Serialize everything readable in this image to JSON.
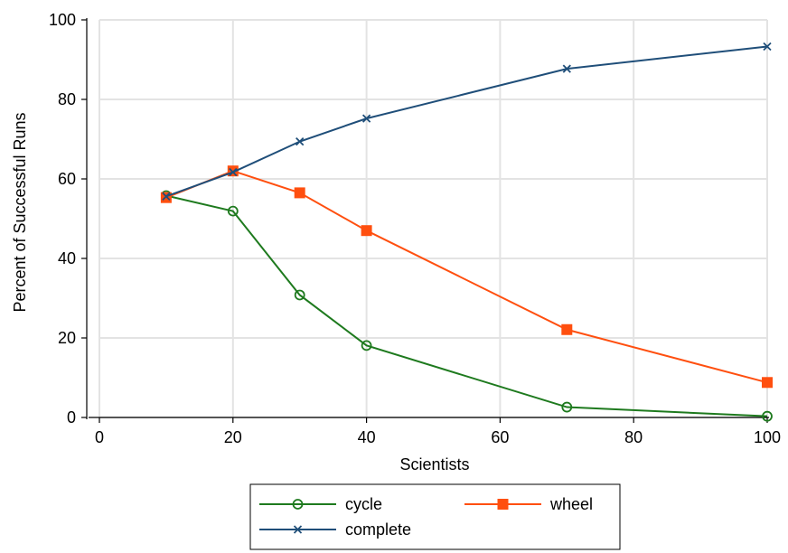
{
  "chart_data": {
    "type": "line",
    "xlabel": "Scientists",
    "ylabel": "Percent of Successful Runs",
    "xlim": [
      0,
      100
    ],
    "ylim": [
      0,
      100
    ],
    "xticks": [
      "0",
      "20",
      "40",
      "60",
      "80",
      "100"
    ],
    "yticks": [
      "0",
      "20",
      "40",
      "60",
      "80",
      "100"
    ],
    "grid": true,
    "legend_position": "bottom",
    "series": [
      {
        "name": "cycle",
        "color": "#1e7a1e",
        "marker": "circle",
        "x": [
          10,
          20,
          30,
          40,
          70,
          100
        ],
        "y": [
          55.8,
          51.9,
          30.8,
          18.1,
          2.6,
          0.3
        ]
      },
      {
        "name": "wheel",
        "color": "#ff4f0f",
        "marker": "square",
        "x": [
          10,
          20,
          30,
          40,
          70,
          100
        ],
        "y": [
          55.3,
          62.0,
          56.5,
          47.0,
          22.1,
          8.8
        ]
      },
      {
        "name": "complete",
        "color": "#1f4e79",
        "marker": "x",
        "x": [
          10,
          20,
          30,
          40,
          70,
          100
        ],
        "y": [
          55.6,
          61.7,
          69.4,
          75.2,
          87.7,
          93.3
        ]
      }
    ]
  }
}
